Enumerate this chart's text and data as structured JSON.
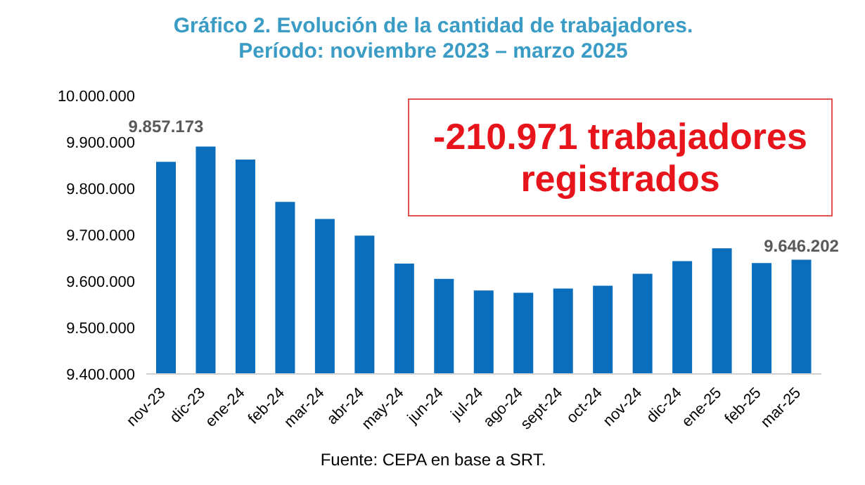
{
  "chart_data": {
    "type": "bar",
    "title": "Gráfico 2. Evolución de la cantidad de trabajadores.",
    "subtitle": "Período: noviembre 2023 – marzo 2025",
    "categories": [
      "nov-23",
      "dic-23",
      "ene-24",
      "feb-24",
      "mar-24",
      "abr-24",
      "may-24",
      "jun-24",
      "jul-24",
      "ago-24",
      "sept-24",
      "oct-24",
      "nov-24",
      "dic-24",
      "ene-25",
      "feb-25",
      "mar-25"
    ],
    "values": [
      9857173,
      9890000,
      9862000,
      9771000,
      9734000,
      9698000,
      9638000,
      9605000,
      9580000,
      9575000,
      9584000,
      9590000,
      9616000,
      9643000,
      9671000,
      9639000,
      9646202
    ],
    "value_labels": [
      "9.857.173",
      null,
      null,
      null,
      null,
      null,
      null,
      null,
      null,
      null,
      null,
      null,
      null,
      null,
      null,
      null,
      "9.646.202"
    ],
    "color": "#0a6ebd",
    "ylim": [
      9400000,
      10000000
    ],
    "yticks": [
      {
        "value": 9400000,
        "label": "9.400.000"
      },
      {
        "value": 9500000,
        "label": "9.500.000"
      },
      {
        "value": 9600000,
        "label": "9.600.000"
      },
      {
        "value": 9700000,
        "label": "9.700.000"
      },
      {
        "value": 9800000,
        "label": "9.800.000"
      },
      {
        "value": 9900000,
        "label": "9.900.000"
      },
      {
        "value": 10000000,
        "label": "10.000.000"
      }
    ],
    "grid": false,
    "legend": false,
    "annotations": [
      "-210.971 trabajadores registrados",
      "Fuente: CEPA en base a SRT."
    ]
  }
}
